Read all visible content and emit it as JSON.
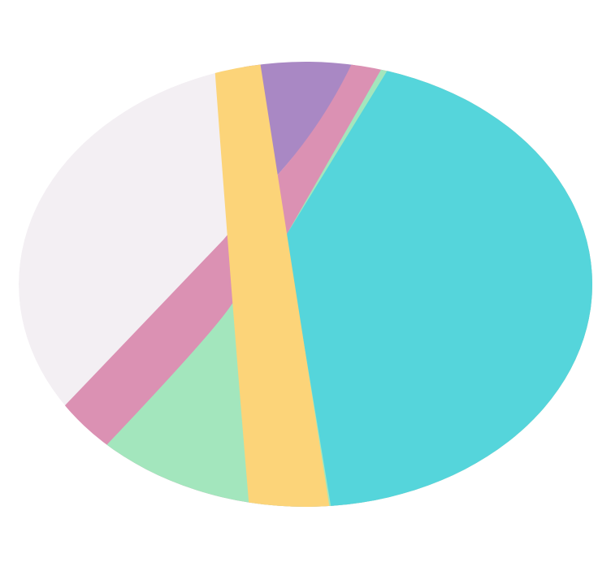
{
  "colors": {
    "background": "#ffffff",
    "lavender": "#F3EFF3",
    "purple": "#A988C4",
    "pink": "#DB91B3",
    "green": "#A3E6BD",
    "cyan": "#55D5DB",
    "yellow": "#FCD479"
  }
}
